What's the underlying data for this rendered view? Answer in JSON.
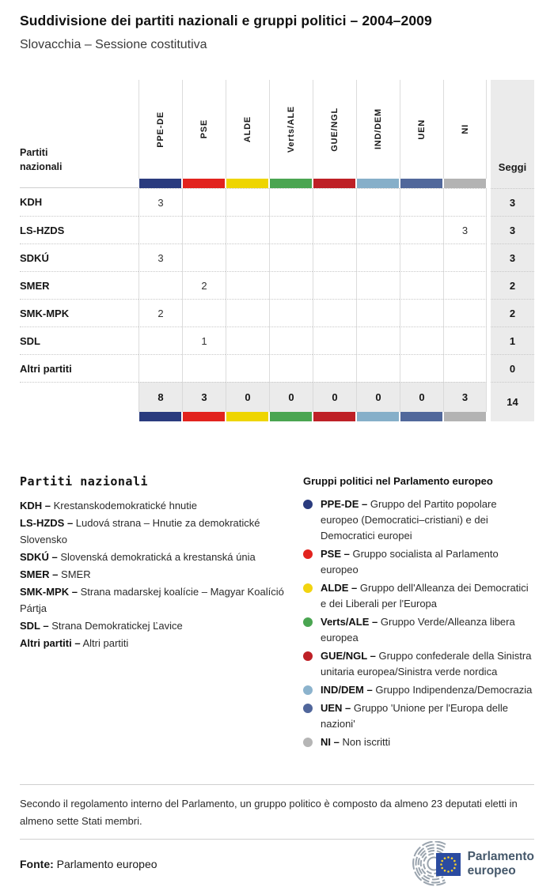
{
  "page": {
    "title": "Suddivisione dei partiti nazionali e gruppi politici – 2004–2009",
    "subtitle": "Slovacchia – Sessione costitutiva"
  },
  "table": {
    "row_header": "Partiti nazionali",
    "seats_label": "Seggi",
    "groups": [
      {
        "id": "PPE-DE",
        "color": "#2a3b7e"
      },
      {
        "id": "PSE",
        "color": "#e2231e"
      },
      {
        "id": "ALDE",
        "color": "#eed500"
      },
      {
        "id": "Verts/ALE",
        "color": "#4aa551"
      },
      {
        "id": "GUE/NGL",
        "color": "#be2026"
      },
      {
        "id": "IND/DEM",
        "color": "#86afc9"
      },
      {
        "id": "UEN",
        "color": "#51689b"
      },
      {
        "id": "NI",
        "color": "#b3b3b3"
      }
    ],
    "rows": [
      {
        "party": "KDH",
        "values": [
          "3",
          "",
          "",
          "",
          "",
          "",
          "",
          ""
        ],
        "seats": "3"
      },
      {
        "party": "LS-HZDS",
        "values": [
          "",
          "",
          "",
          "",
          "",
          "",
          "",
          "3"
        ],
        "seats": "3"
      },
      {
        "party": "SDKÚ",
        "values": [
          "3",
          "",
          "",
          "",
          "",
          "",
          "",
          ""
        ],
        "seats": "3"
      },
      {
        "party": "SMER",
        "values": [
          "",
          "2",
          "",
          "",
          "",
          "",
          "",
          ""
        ],
        "seats": "2"
      },
      {
        "party": "SMK-MPK",
        "values": [
          "2",
          "",
          "",
          "",
          "",
          "",
          "",
          ""
        ],
        "seats": "2"
      },
      {
        "party": "SDL",
        "values": [
          "",
          "1",
          "",
          "",
          "",
          "",
          "",
          ""
        ],
        "seats": "1"
      },
      {
        "party": "Altri partiti",
        "values": [
          "",
          "",
          "",
          "",
          "",
          "",
          "",
          ""
        ],
        "seats": "0"
      }
    ],
    "totals": {
      "values": [
        "8",
        "3",
        "0",
        "0",
        "0",
        "0",
        "0",
        "3"
      ],
      "seats": "14"
    }
  },
  "legend_parties": {
    "heading": "Partiti nazionali",
    "items": [
      {
        "label": "KDH –",
        "text": "Krestanskodemokratické hnutie"
      },
      {
        "label": "LS-HZDS –",
        "text": "Ludová strana – Hnutie za demokratické Slovensko"
      },
      {
        "label": "SDKÚ –",
        "text": "Slovenská demokratická a krestanská únia"
      },
      {
        "label": "SMER –",
        "text": "SMER"
      },
      {
        "label": "SMK-MPK –",
        "text": "Strana madarskej koalície – Magyar Koalíció Pártja"
      },
      {
        "label": "SDL –",
        "text": "Strana Demokratickej Ľavice"
      },
      {
        "label": "Altri partiti –",
        "text": "Altri partiti"
      }
    ]
  },
  "legend_groups": {
    "heading": "Gruppi politici nel Parlamento europeo",
    "items": [
      {
        "id": "PPE-DE",
        "color": "#2a3b7e",
        "label": "PPE-DE –",
        "text": "Gruppo del Partito popolare europeo (Democratici–cristiani) e dei Democratici europei"
      },
      {
        "id": "PSE",
        "color": "#e2231e",
        "label": "PSE –",
        "text": "Gruppo socialista al Parlamento europeo"
      },
      {
        "id": "ALDE",
        "color": "#f2d410",
        "label": "ALDE –",
        "text": "Gruppo dell'Alleanza dei Democratici e dei Liberali per l'Europa"
      },
      {
        "id": "Verts/ALE",
        "color": "#4aa551",
        "label": "Verts/ALE –",
        "text": "Gruppo Verde/Alleanza libera europea"
      },
      {
        "id": "GUE/NGL",
        "color": "#be2026",
        "label": "GUE/NGL –",
        "text": "Gruppo confederale della Sinistra unitaria europea/Sinistra verde nordica"
      },
      {
        "id": "IND/DEM",
        "color": "#8cb3cd",
        "label": "IND/DEM –",
        "text": "Gruppo Indipendenza/Democrazia"
      },
      {
        "id": "UEN",
        "color": "#50669b",
        "label": "UEN –",
        "text": "Gruppo 'Unione per l'Europa delle nazioni'"
      },
      {
        "id": "NI",
        "color": "#b5b5b5",
        "label": "NI –",
        "text": "Non iscritti"
      }
    ]
  },
  "footer": {
    "note": "Secondo il regolamento interno del Parlamento, un gruppo politico è composto da almeno 23 deputati eletti in almeno sette Stati membri.",
    "source_label": "Fonte:",
    "source": "Parlamento europeo",
    "logo_text_line1": "Parlamento",
    "logo_text_line2": "europeo"
  },
  "chart_data": {
    "type": "table",
    "title": "Suddivisione dei partiti nazionali e gruppi politici – 2004–2009",
    "subtitle": "Slovacchia – Sessione costitutiva",
    "columns": [
      "PPE-DE",
      "PSE",
      "ALDE",
      "Verts/ALE",
      "GUE/NGL",
      "IND/DEM",
      "UEN",
      "NI",
      "Seggi"
    ],
    "rows": [
      {
        "party": "KDH",
        "values": [
          3,
          null,
          null,
          null,
          null,
          null,
          null,
          null
        ],
        "seats": 3
      },
      {
        "party": "LS-HZDS",
        "values": [
          null,
          null,
          null,
          null,
          null,
          null,
          null,
          3
        ],
        "seats": 3
      },
      {
        "party": "SDKÚ",
        "values": [
          3,
          null,
          null,
          null,
          null,
          null,
          null,
          null
        ],
        "seats": 3
      },
      {
        "party": "SMER",
        "values": [
          null,
          2,
          null,
          null,
          null,
          null,
          null,
          null
        ],
        "seats": 2
      },
      {
        "party": "SMK-MPK",
        "values": [
          2,
          null,
          null,
          null,
          null,
          null,
          null,
          null
        ],
        "seats": 2
      },
      {
        "party": "SDL",
        "values": [
          null,
          1,
          null,
          null,
          null,
          null,
          null,
          null
        ],
        "seats": 1
      },
      {
        "party": "Altri partiti",
        "values": [
          null,
          null,
          null,
          null,
          null,
          null,
          null,
          null
        ],
        "seats": 0
      }
    ],
    "totals": {
      "values": [
        8,
        3,
        0,
        0,
        0,
        0,
        0,
        3
      ],
      "seats": 14
    }
  }
}
